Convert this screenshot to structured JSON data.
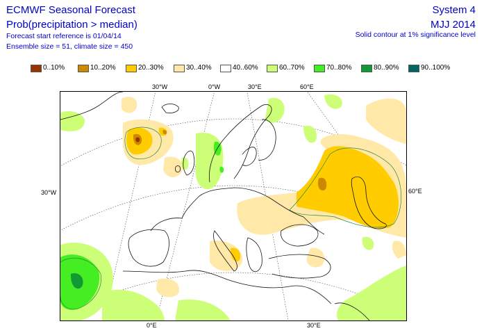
{
  "header": {
    "title": "ECMWF Seasonal Forecast",
    "subtitle": "Prob(precipitation > median)",
    "forecast_start": "Forecast start reference is 01/04/14",
    "ensemble": "Ensemble size = 51, climate size = 450",
    "system": "System 4",
    "period": "MJJ 2014",
    "significance": "Solid contour at 1% significance level"
  },
  "legend": [
    {
      "label": "0..10%",
      "color": "#993300"
    },
    {
      "label": "10..20%",
      "color": "#cc8800"
    },
    {
      "label": "20..30%",
      "color": "#ffcc00"
    },
    {
      "label": "30..40%",
      "color": "#ffe8a8"
    },
    {
      "label": "40..60%",
      "color": "#ffffff"
    },
    {
      "label": "60..70%",
      "color": "#ccff77"
    },
    {
      "label": "70..80%",
      "color": "#44ee22"
    },
    {
      "label": "80..90%",
      "color": "#119933"
    },
    {
      "label": "90..100%",
      "color": "#006666"
    }
  ],
  "axis_labels": {
    "top": [
      "30°W",
      "0°W",
      "30°E",
      "60°E"
    ],
    "left": "30°W",
    "right": "60°E",
    "bottom": [
      "0°E",
      "30°E"
    ]
  }
}
